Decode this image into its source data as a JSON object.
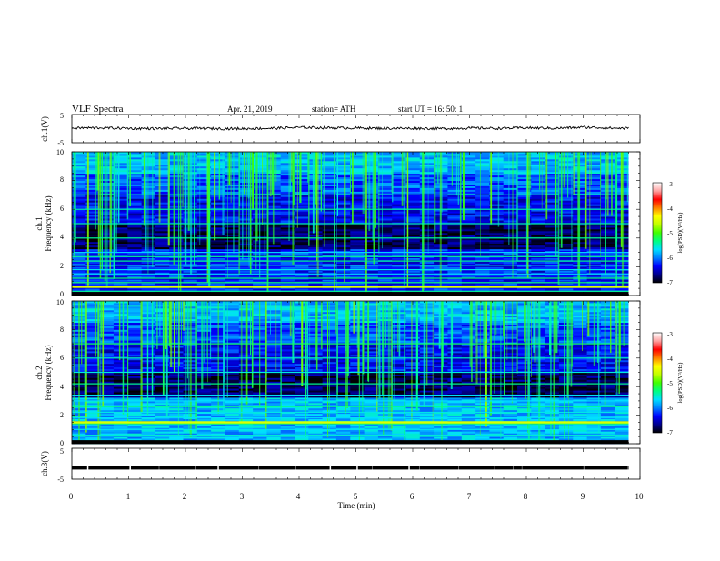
{
  "header": {
    "title": "VLF  Spectra",
    "date": "Apr. 21, 2019",
    "station": "station= ATH",
    "start": "start  UT  =    16: 50: 1"
  },
  "chart_data": [
    {
      "type": "line",
      "panel": "ch1-waveform",
      "ylabel": "ch.1(V)",
      "ytick_labels": [
        "5",
        "-5"
      ],
      "ylim": [
        -5,
        5
      ],
      "xlim": [
        0,
        10
      ],
      "color": "#000000",
      "note_values": "waveform approx centered near 0 V with small fluctuations (about -0.6 to 0.8 V)",
      "x": [
        0,
        0.5,
        1,
        1.5,
        2,
        2.5,
        3,
        3.5,
        4,
        4.5,
        5,
        5.5,
        6,
        6.5,
        7,
        7.5,
        8,
        8.5,
        9,
        9.5,
        9.8
      ],
      "y": [
        0.2,
        0.3,
        0.1,
        0.0,
        0.1,
        0.0,
        0.0,
        0.1,
        0.4,
        0.3,
        0.2,
        0.1,
        0.1,
        0.0,
        0.2,
        0.1,
        0.3,
        0.1,
        0.5,
        0.2,
        0.1
      ]
    },
    {
      "type": "heatmap",
      "panel": "ch1-spectrogram",
      "ylabel_top": "ch.1",
      "ylabel": "Frequency  (kHz)",
      "ytick_labels": [
        "0",
        "2",
        "4",
        "6",
        "8",
        "10"
      ],
      "ylim": [
        0,
        10
      ],
      "xlim": [
        0,
        10
      ],
      "data_xlim": [
        0,
        9.8
      ],
      "colorbar_label": "log(PSD)(V²/Hz)",
      "colorbar_tick_labels": [
        "-3",
        "-4",
        "-5",
        "-6",
        "-7"
      ],
      "clim": [
        -7,
        -3
      ],
      "bands_khz": [
        0.3,
        0.6,
        0.9,
        1.2,
        1.5,
        1.8,
        2.1,
        2.4,
        2.7,
        3.0,
        4.0,
        5.0,
        6.0,
        7.0
      ],
      "strong_band_khz": 0.6
    },
    {
      "type": "heatmap",
      "panel": "ch2-spectrogram",
      "ylabel_top": "ch.2",
      "ylabel": "Frequency  (kHz)",
      "ytick_labels": [
        "0",
        "2",
        "4",
        "6",
        "8",
        "10"
      ],
      "ylim": [
        0,
        10
      ],
      "xlim": [
        0,
        10
      ],
      "data_xlim": [
        0,
        9.8
      ],
      "colorbar_label": "log(PSD)(V²/Hz)",
      "colorbar_tick_labels": [
        "-3",
        "-4",
        "-5",
        "-6",
        "-7"
      ],
      "clim": [
        -7,
        -3
      ],
      "bands_khz": [
        0.6,
        1.0,
        1.4,
        1.8,
        2.2,
        2.6,
        3.0,
        3.4,
        4.2,
        5.0,
        6.0,
        7.0
      ],
      "strong_band_khz": 1.5
    },
    {
      "type": "line",
      "panel": "ch3-waveform",
      "ylabel": "ch.3(V)",
      "ytick_labels": [
        "5",
        "-5"
      ],
      "ylim": [
        -5,
        5
      ],
      "xlim": [
        0,
        10
      ],
      "color": "#000000",
      "x": [
        0,
        9.8
      ],
      "y": [
        -1.3,
        -1.3
      ],
      "xlabel": "Time  (min)",
      "xtick_labels": [
        "0",
        "1",
        "2",
        "3",
        "4",
        "5",
        "6",
        "7",
        "8",
        "9",
        "10"
      ]
    }
  ],
  "colors": {
    "colormap": [
      "#000000",
      "#00008c",
      "#0000ff",
      "#0080ff",
      "#00e0ff",
      "#00ff80",
      "#40ff00",
      "#c0ff00",
      "#ffff00",
      "#ff8000",
      "#ff0000",
      "#ffa0a0",
      "#ffffff"
    ]
  }
}
